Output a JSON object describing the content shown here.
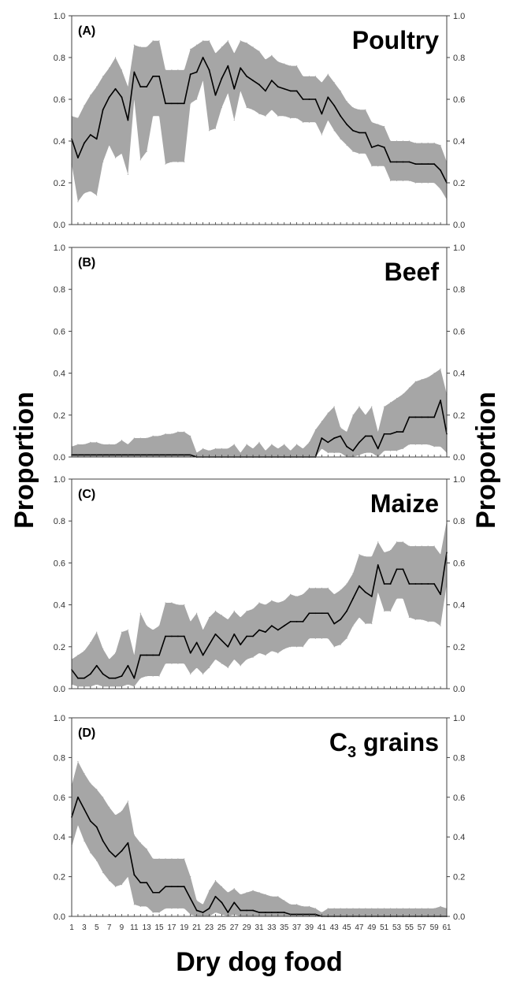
{
  "figure": {
    "ylabel_left": "Proportion",
    "ylabel_right": "Proportion",
    "xlabel": "Dry dog food",
    "colors": {
      "band": "#a6a6a6",
      "line": "#000000",
      "axis": "#404040"
    }
  },
  "chart_data": [
    {
      "type": "area",
      "panel": "(A)",
      "title": "Poultry",
      "ylim": [
        0,
        1
      ],
      "yticks": [
        "0.0",
        "0.2",
        "0.4",
        "0.6",
        "0.8",
        "1.0"
      ],
      "x": [
        1,
        2,
        3,
        4,
        5,
        6,
        7,
        8,
        9,
        10,
        11,
        12,
        13,
        14,
        15,
        16,
        17,
        18,
        19,
        20,
        21,
        22,
        23,
        24,
        25,
        26,
        27,
        28,
        29,
        30,
        31,
        32,
        33,
        34,
        35,
        36,
        37,
        38,
        39,
        40,
        41,
        42,
        43,
        44,
        45,
        46,
        47,
        48,
        49,
        50,
        51,
        52,
        53,
        54,
        55,
        56,
        57,
        58,
        59,
        60,
        61
      ],
      "series": [
        {
          "role": "mean",
          "values": [
            0.41,
            0.32,
            0.39,
            0.43,
            0.41,
            0.55,
            0.61,
            0.65,
            0.61,
            0.5,
            0.73,
            0.66,
            0.66,
            0.71,
            0.71,
            0.58,
            0.58,
            0.58,
            0.58,
            0.72,
            0.73,
            0.8,
            0.74,
            0.62,
            0.7,
            0.76,
            0.65,
            0.75,
            0.71,
            0.69,
            0.67,
            0.64,
            0.69,
            0.66,
            0.65,
            0.64,
            0.64,
            0.6,
            0.6,
            0.6,
            0.53,
            0.61,
            0.57,
            0.52,
            0.48,
            0.45,
            0.44,
            0.44,
            0.37,
            0.38,
            0.37,
            0.3,
            0.3,
            0.3,
            0.3,
            0.29,
            0.29,
            0.29,
            0.29,
            0.26,
            0.2
          ]
        },
        {
          "role": "upper",
          "values": [
            0.52,
            0.51,
            0.57,
            0.62,
            0.66,
            0.71,
            0.75,
            0.8,
            0.74,
            0.66,
            0.86,
            0.85,
            0.85,
            0.88,
            0.88,
            0.74,
            0.74,
            0.74,
            0.74,
            0.84,
            0.86,
            0.88,
            0.88,
            0.82,
            0.85,
            0.88,
            0.82,
            0.88,
            0.87,
            0.85,
            0.83,
            0.79,
            0.81,
            0.78,
            0.77,
            0.76,
            0.76,
            0.71,
            0.71,
            0.71,
            0.68,
            0.72,
            0.68,
            0.64,
            0.59,
            0.56,
            0.55,
            0.55,
            0.49,
            0.48,
            0.47,
            0.4,
            0.4,
            0.4,
            0.4,
            0.39,
            0.39,
            0.39,
            0.39,
            0.38,
            0.3
          ]
        },
        {
          "role": "lower",
          "values": [
            0.29,
            0.11,
            0.15,
            0.16,
            0.14,
            0.3,
            0.38,
            0.32,
            0.34,
            0.24,
            0.6,
            0.31,
            0.35,
            0.52,
            0.52,
            0.29,
            0.3,
            0.3,
            0.3,
            0.58,
            0.6,
            0.69,
            0.45,
            0.46,
            0.56,
            0.63,
            0.5,
            0.64,
            0.56,
            0.55,
            0.53,
            0.52,
            0.55,
            0.52,
            0.52,
            0.51,
            0.51,
            0.49,
            0.49,
            0.49,
            0.43,
            0.5,
            0.45,
            0.41,
            0.38,
            0.35,
            0.34,
            0.34,
            0.28,
            0.28,
            0.28,
            0.21,
            0.21,
            0.21,
            0.21,
            0.2,
            0.2,
            0.2,
            0.2,
            0.17,
            0.12
          ]
        }
      ]
    },
    {
      "type": "area",
      "panel": "(B)",
      "title": "Beef",
      "ylim": [
        0,
        1
      ],
      "yticks": [
        "0.0",
        "0.2",
        "0.4",
        "0.6",
        "0.8",
        "1.0"
      ],
      "x": [
        1,
        2,
        3,
        4,
        5,
        6,
        7,
        8,
        9,
        10,
        11,
        12,
        13,
        14,
        15,
        16,
        17,
        18,
        19,
        20,
        21,
        22,
        23,
        24,
        25,
        26,
        27,
        28,
        29,
        30,
        31,
        32,
        33,
        34,
        35,
        36,
        37,
        38,
        39,
        40,
        41,
        42,
        43,
        44,
        45,
        46,
        47,
        48,
        49,
        50,
        51,
        52,
        53,
        54,
        55,
        56,
        57,
        58,
        59,
        60,
        61
      ],
      "series": [
        {
          "role": "mean",
          "values": [
            0.01,
            0.01,
            0.01,
            0.01,
            0.01,
            0.01,
            0.01,
            0.01,
            0.01,
            0.01,
            0.01,
            0.01,
            0.01,
            0.01,
            0.01,
            0.01,
            0.01,
            0.01,
            0.01,
            0.01,
            0,
            0,
            0,
            0,
            0,
            0,
            0,
            0,
            0,
            0,
            0,
            0,
            0,
            0,
            0,
            0,
            0,
            0,
            0,
            0,
            0.09,
            0.07,
            0.09,
            0.1,
            0.05,
            0.03,
            0.07,
            0.1,
            0.1,
            0.04,
            0.11,
            0.11,
            0.12,
            0.12,
            0.19,
            0.19,
            0.19,
            0.19,
            0.19,
            0.27,
            0.11
          ]
        },
        {
          "role": "upper",
          "values": [
            0.05,
            0.06,
            0.06,
            0.07,
            0.07,
            0.06,
            0.06,
            0.06,
            0.08,
            0.06,
            0.09,
            0.09,
            0.09,
            0.1,
            0.1,
            0.11,
            0.11,
            0.12,
            0.12,
            0.1,
            0.02,
            0.04,
            0.03,
            0.04,
            0.04,
            0.04,
            0.06,
            0.02,
            0.06,
            0.04,
            0.07,
            0.03,
            0.06,
            0.04,
            0.06,
            0.03,
            0.06,
            0.04,
            0.07,
            0.13,
            0.17,
            0.21,
            0.24,
            0.14,
            0.12,
            0.2,
            0.24,
            0.2,
            0.24,
            0.12,
            0.24,
            0.26,
            0.28,
            0.3,
            0.33,
            0.36,
            0.37,
            0.38,
            0.4,
            0.42,
            0.3
          ]
        },
        {
          "role": "lower",
          "values": [
            0,
            0,
            0,
            0,
            0,
            0,
            0,
            0,
            0,
            0,
            0,
            0,
            0,
            0,
            0,
            0,
            0,
            0,
            0,
            0,
            0,
            0,
            0,
            0,
            0,
            0,
            0,
            0,
            0,
            0,
            0,
            0,
            0,
            0,
            0,
            0,
            0,
            0,
            0,
            0,
            0.04,
            0.02,
            0.02,
            0.02,
            0,
            0,
            0.01,
            0.02,
            0.02,
            0,
            0.03,
            0.03,
            0.03,
            0.04,
            0.06,
            0.06,
            0.06,
            0.06,
            0.05,
            0.05,
            0.02
          ]
        }
      ]
    },
    {
      "type": "area",
      "panel": "(C)",
      "title": "Maize",
      "ylim": [
        0,
        1
      ],
      "yticks": [
        "0.0",
        "0.2",
        "0.4",
        "0.6",
        "0.8",
        "1.0"
      ],
      "x": [
        1,
        2,
        3,
        4,
        5,
        6,
        7,
        8,
        9,
        10,
        11,
        12,
        13,
        14,
        15,
        16,
        17,
        18,
        19,
        20,
        21,
        22,
        23,
        24,
        25,
        26,
        27,
        28,
        29,
        30,
        31,
        32,
        33,
        34,
        35,
        36,
        37,
        38,
        39,
        40,
        41,
        42,
        43,
        44,
        45,
        46,
        47,
        48,
        49,
        50,
        51,
        52,
        53,
        54,
        55,
        56,
        57,
        58,
        59,
        60,
        61
      ],
      "series": [
        {
          "role": "mean",
          "values": [
            0.09,
            0.05,
            0.05,
            0.07,
            0.11,
            0.07,
            0.05,
            0.05,
            0.06,
            0.11,
            0.05,
            0.16,
            0.16,
            0.16,
            0.16,
            0.25,
            0.25,
            0.25,
            0.25,
            0.17,
            0.22,
            0.16,
            0.21,
            0.26,
            0.23,
            0.2,
            0.26,
            0.21,
            0.25,
            0.25,
            0.28,
            0.27,
            0.3,
            0.28,
            0.3,
            0.32,
            0.32,
            0.32,
            0.36,
            0.36,
            0.36,
            0.36,
            0.31,
            0.33,
            0.37,
            0.43,
            0.49,
            0.46,
            0.44,
            0.59,
            0.5,
            0.5,
            0.57,
            0.57,
            0.5,
            0.5,
            0.5,
            0.5,
            0.5,
            0.45,
            0.65
          ]
        },
        {
          "role": "upper",
          "values": [
            0.14,
            0.16,
            0.18,
            0.22,
            0.27,
            0.19,
            0.14,
            0.17,
            0.27,
            0.28,
            0.16,
            0.36,
            0.3,
            0.28,
            0.3,
            0.41,
            0.41,
            0.4,
            0.4,
            0.32,
            0.36,
            0.28,
            0.34,
            0.37,
            0.35,
            0.33,
            0.37,
            0.34,
            0.37,
            0.38,
            0.41,
            0.4,
            0.42,
            0.41,
            0.42,
            0.45,
            0.44,
            0.45,
            0.48,
            0.48,
            0.48,
            0.48,
            0.45,
            0.47,
            0.5,
            0.55,
            0.64,
            0.63,
            0.63,
            0.7,
            0.65,
            0.66,
            0.7,
            0.7,
            0.68,
            0.68,
            0.68,
            0.68,
            0.68,
            0.64,
            0.8
          ]
        },
        {
          "role": "lower",
          "values": [
            0.02,
            0.01,
            0.01,
            0.01,
            0.02,
            0.01,
            0.01,
            0.01,
            0.01,
            0.02,
            0.01,
            0.05,
            0.06,
            0.06,
            0.06,
            0.12,
            0.12,
            0.12,
            0.12,
            0.07,
            0.1,
            0.07,
            0.1,
            0.14,
            0.12,
            0.1,
            0.14,
            0.11,
            0.14,
            0.15,
            0.17,
            0.16,
            0.18,
            0.17,
            0.19,
            0.2,
            0.2,
            0.2,
            0.24,
            0.24,
            0.24,
            0.24,
            0.2,
            0.21,
            0.24,
            0.3,
            0.34,
            0.31,
            0.31,
            0.46,
            0.37,
            0.37,
            0.43,
            0.43,
            0.34,
            0.33,
            0.33,
            0.32,
            0.32,
            0.3,
            0.5
          ]
        }
      ]
    },
    {
      "type": "area",
      "panel": "(D)",
      "title": "C",
      "title_sub": "3",
      "title_rest": " grains",
      "ylim": [
        0,
        1
      ],
      "yticks": [
        "0.0",
        "0.2",
        "0.4",
        "0.6",
        "0.8",
        "1.0"
      ],
      "xticks": [
        "1",
        "3",
        "5",
        "7",
        "9",
        "11",
        "13",
        "15",
        "17",
        "19",
        "21",
        "23",
        "25",
        "27",
        "29",
        "31",
        "33",
        "35",
        "37",
        "39",
        "41",
        "43",
        "45",
        "47",
        "49",
        "51",
        "53",
        "55",
        "57",
        "59",
        "61"
      ],
      "x": [
        1,
        2,
        3,
        4,
        5,
        6,
        7,
        8,
        9,
        10,
        11,
        12,
        13,
        14,
        15,
        16,
        17,
        18,
        19,
        20,
        21,
        22,
        23,
        24,
        25,
        26,
        27,
        28,
        29,
        30,
        31,
        32,
        33,
        34,
        35,
        36,
        37,
        38,
        39,
        40,
        41,
        42,
        43,
        44,
        45,
        46,
        47,
        48,
        49,
        50,
        51,
        52,
        53,
        54,
        55,
        56,
        57,
        58,
        59,
        60,
        61
      ],
      "series": [
        {
          "role": "mean",
          "values": [
            0.5,
            0.6,
            0.54,
            0.48,
            0.45,
            0.38,
            0.33,
            0.3,
            0.33,
            0.37,
            0.21,
            0.17,
            0.17,
            0.12,
            0.12,
            0.15,
            0.15,
            0.15,
            0.15,
            0.09,
            0.03,
            0.02,
            0.04,
            0.1,
            0.07,
            0.02,
            0.07,
            0.03,
            0.03,
            0.03,
            0.02,
            0.02,
            0.02,
            0.02,
            0.02,
            0.01,
            0.01,
            0.01,
            0.01,
            0.01,
            0,
            0,
            0,
            0,
            0,
            0,
            0,
            0,
            0,
            0,
            0,
            0,
            0,
            0,
            0,
            0,
            0,
            0,
            0,
            0,
            0
          ]
        },
        {
          "role": "upper",
          "values": [
            0.66,
            0.78,
            0.72,
            0.67,
            0.64,
            0.6,
            0.55,
            0.51,
            0.53,
            0.58,
            0.41,
            0.37,
            0.34,
            0.29,
            0.29,
            0.29,
            0.29,
            0.29,
            0.29,
            0.2,
            0.08,
            0.06,
            0.13,
            0.18,
            0.15,
            0.12,
            0.14,
            0.11,
            0.12,
            0.13,
            0.12,
            0.11,
            0.1,
            0.1,
            0.08,
            0.06,
            0.06,
            0.05,
            0.05,
            0.04,
            0.02,
            0.04,
            0.04,
            0.04,
            0.04,
            0.04,
            0.04,
            0.04,
            0.04,
            0.04,
            0.04,
            0.04,
            0.04,
            0.04,
            0.04,
            0.04,
            0.04,
            0.04,
            0.04,
            0.05,
            0.04
          ]
        },
        {
          "role": "lower",
          "values": [
            0.35,
            0.46,
            0.38,
            0.32,
            0.28,
            0.22,
            0.18,
            0.15,
            0.16,
            0.2,
            0.06,
            0.05,
            0.05,
            0.02,
            0.02,
            0.04,
            0.04,
            0.04,
            0.04,
            0.01,
            0,
            0,
            0,
            0.02,
            0.01,
            0,
            0.01,
            0,
            0,
            0,
            0,
            0,
            0,
            0,
            0,
            0,
            0,
            0,
            0,
            0,
            0,
            0,
            0,
            0,
            0,
            0,
            0,
            0,
            0,
            0,
            0,
            0,
            0,
            0,
            0,
            0,
            0,
            0,
            0,
            0,
            0
          ]
        }
      ]
    }
  ]
}
